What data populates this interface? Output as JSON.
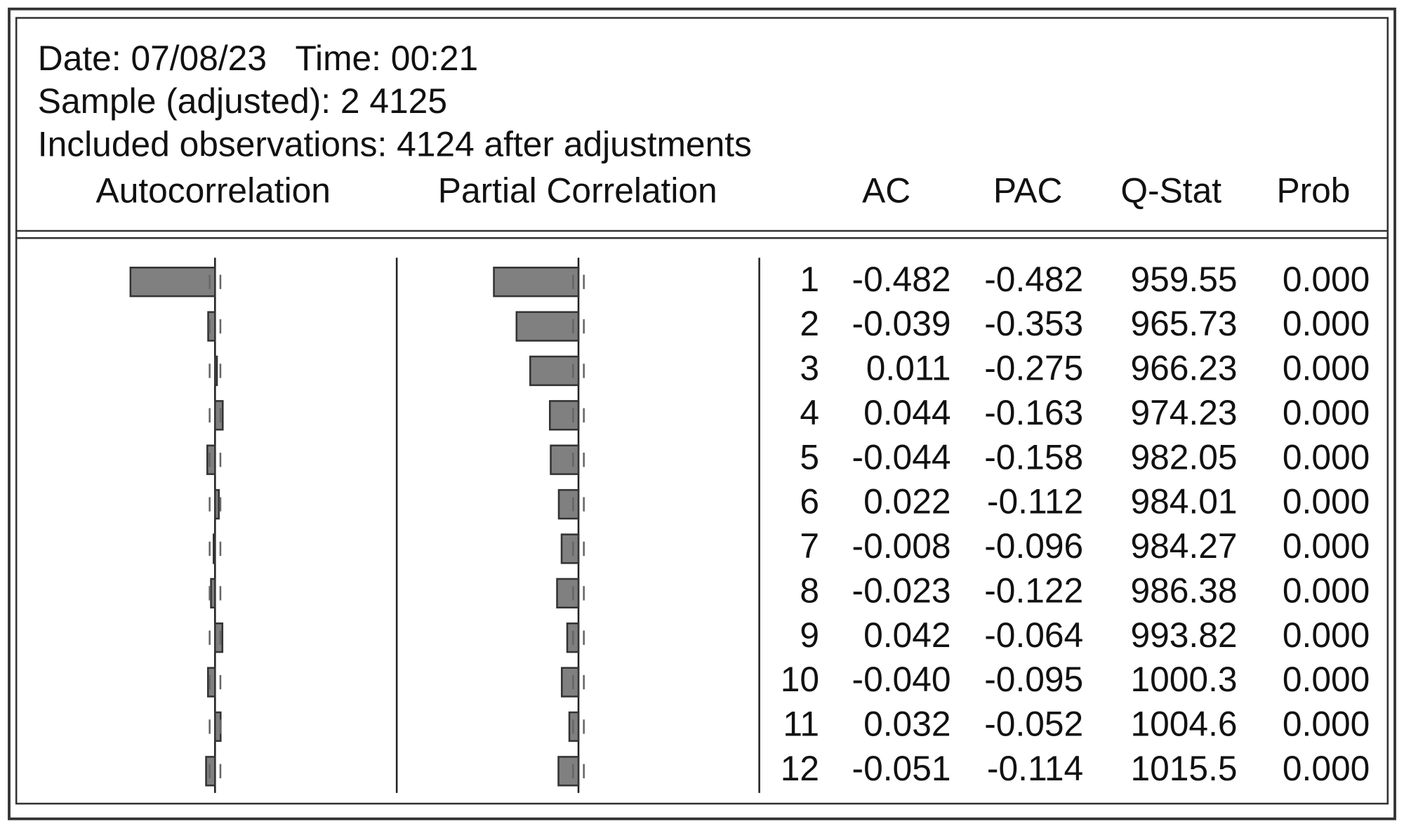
{
  "header": {
    "lines": [
      "Date: 07/08/23   Time: 00:21",
      "Sample (adjusted): 2 4125",
      "Included observations: 4124 after adjustments"
    ]
  },
  "table": {
    "columns": [
      "Autocorrelation",
      "Partial Correlation",
      "AC",
      "PAC",
      "Q-Stat",
      "Prob"
    ],
    "rows": [
      [
        "1",
        "-0.482",
        "-0.482",
        "959.55",
        "0.000"
      ],
      [
        "2",
        "-0.039",
        "-0.353",
        "965.73",
        "0.000"
      ],
      [
        "3",
        "0.011",
        "-0.275",
        "966.23",
        "0.000"
      ],
      [
        "4",
        "0.044",
        "-0.163",
        "974.23",
        "0.000"
      ],
      [
        "5",
        "-0.044",
        "-0.158",
        "982.05",
        "0.000"
      ],
      [
        "6",
        "0.022",
        "-0.112",
        "984.01",
        "0.000"
      ],
      [
        "7",
        "-0.008",
        "-0.096",
        "984.27",
        "0.000"
      ],
      [
        "8",
        "-0.023",
        "-0.122",
        "986.38",
        "0.000"
      ],
      [
        "9",
        "0.042",
        "-0.064",
        "993.82",
        "0.000"
      ],
      [
        "10",
        "-0.040",
        "-0.095",
        "1000.3",
        "0.000"
      ],
      [
        "11",
        "0.032",
        "-0.052",
        "1004.6",
        "0.000"
      ],
      [
        "12",
        "-0.051",
        "-0.114",
        "1015.5",
        "0.000"
      ]
    ]
  }
}
